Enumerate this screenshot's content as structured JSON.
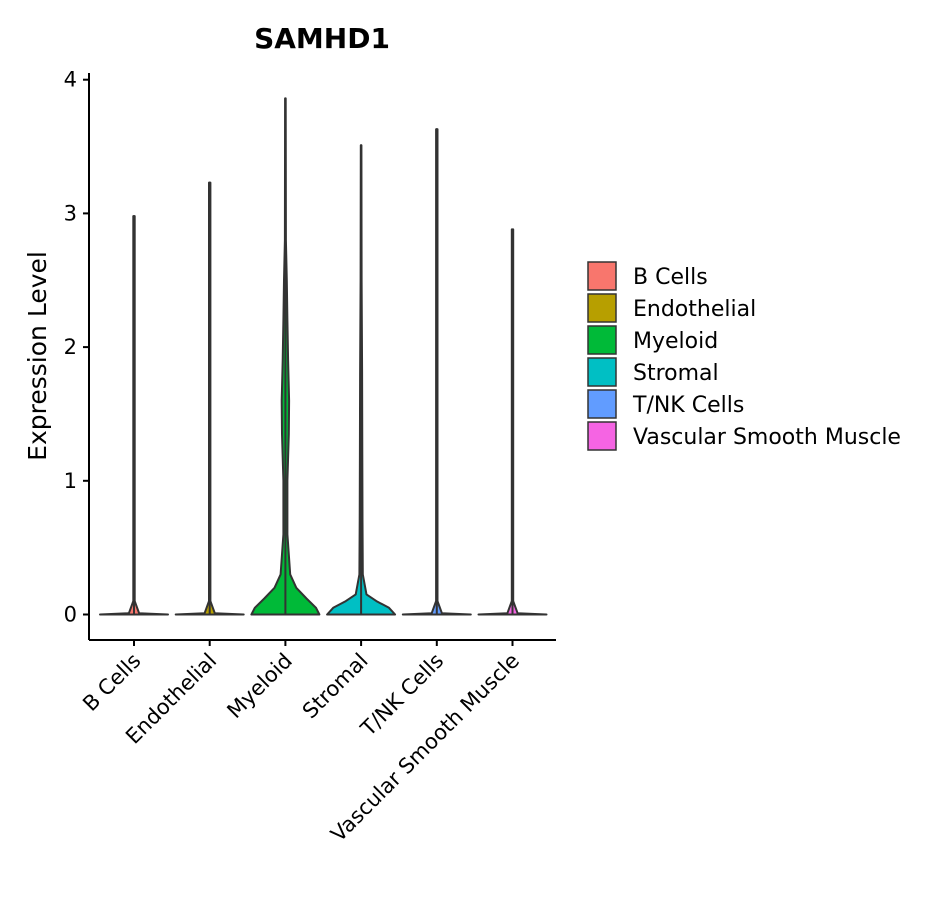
{
  "chart_data": {
    "type": "violin",
    "title": "SAMHD1",
    "xlabel": "",
    "ylabel": "Expression Level",
    "ylim": [
      -0.2,
      4.05
    ],
    "yticks": [
      "0",
      "1",
      "2",
      "3",
      "4"
    ],
    "grid": false,
    "legend_position": "right",
    "categories": [
      "B Cells",
      "Endothelial",
      "Myeloid",
      "Stromal",
      "T/NK Cells",
      "Vascular Smooth Muscle"
    ],
    "colors": [
      "#F8766D",
      "#B79F00",
      "#00BA38",
      "#00BFC4",
      "#619CFF",
      "#F564E3"
    ],
    "series": [
      {
        "name": "B Cells",
        "max": 2.98,
        "density": [
          [
            0,
            1.0
          ],
          [
            0.01,
            0.15
          ],
          [
            0.1,
            0.02
          ],
          [
            2.98,
            0.02
          ]
        ]
      },
      {
        "name": "Endothelial",
        "max": 3.23,
        "density": [
          [
            0,
            1.0
          ],
          [
            0.01,
            0.15
          ],
          [
            0.1,
            0.02
          ],
          [
            3.23,
            0.02
          ]
        ]
      },
      {
        "name": "Myeloid",
        "max": 3.86,
        "density": [
          [
            0,
            1.0
          ],
          [
            0.05,
            0.9
          ],
          [
            0.12,
            0.62
          ],
          [
            0.2,
            0.32
          ],
          [
            0.3,
            0.14
          ],
          [
            0.6,
            0.06
          ],
          [
            1.0,
            0.06
          ],
          [
            1.35,
            0.1
          ],
          [
            1.6,
            0.11
          ],
          [
            1.9,
            0.08
          ],
          [
            2.2,
            0.06
          ],
          [
            2.5,
            0.04
          ],
          [
            2.8,
            0.015
          ],
          [
            3.86,
            0.01
          ]
        ]
      },
      {
        "name": "Stromal",
        "max": 3.51,
        "density": [
          [
            0,
            1.0
          ],
          [
            0.05,
            0.82
          ],
          [
            0.1,
            0.45
          ],
          [
            0.15,
            0.16
          ],
          [
            0.3,
            0.05
          ],
          [
            0.7,
            0.04
          ],
          [
            1.2,
            0.035
          ],
          [
            1.8,
            0.03
          ],
          [
            2.5,
            0.015
          ],
          [
            3.51,
            0.01
          ]
        ]
      },
      {
        "name": "T/NK Cells",
        "max": 3.63,
        "density": [
          [
            0,
            1.0
          ],
          [
            0.01,
            0.15
          ],
          [
            0.1,
            0.02
          ],
          [
            3.63,
            0.02
          ]
        ]
      },
      {
        "name": "Vascular Smooth Muscle",
        "max": 2.88,
        "density": [
          [
            0,
            1.0
          ],
          [
            0.01,
            0.15
          ],
          [
            0.1,
            0.02
          ],
          [
            2.88,
            0.02
          ]
        ]
      }
    ]
  }
}
